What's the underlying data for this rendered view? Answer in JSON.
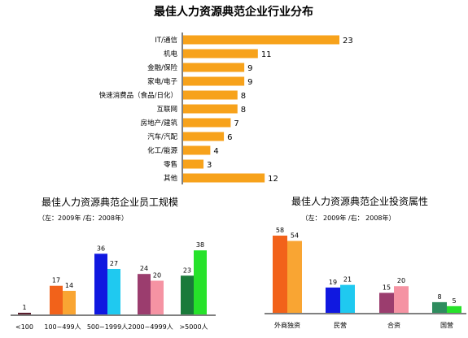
{
  "colors": {
    "industry_bar": "#F7A21B",
    "axis": "#000000",
    "size_pairs": [
      [
        "#F2621A",
        "#F9A533"
      ],
      [
        "#1018E0",
        "#1FC9F0"
      ],
      [
        "#9B3D6E",
        "#F593A3"
      ],
      [
        "#1A7A3A",
        "#26E22A"
      ]
    ],
    "size_small": [
      "#5A1F2E",
      "#5A1F2E"
    ],
    "own_pairs": [
      [
        "#F2621A",
        "#F9A533"
      ],
      [
        "#1018E0",
        "#1FC9F0"
      ],
      [
        "#9B3D6E",
        "#F593A3"
      ],
      [
        "#2E8C5E",
        "#26E22A"
      ]
    ]
  },
  "chart_data": [
    {
      "type": "bar",
      "orientation": "horizontal",
      "title": "最佳人力资源典范企业行业分布",
      "categories": [
        "IT/通信",
        "机电",
        "金融/保险",
        "家电/电子",
        "快速消费品（食品/日化）",
        "互联网",
        "房地产/建筑",
        "汽车/汽配",
        "化工/能源",
        "零售",
        "其他"
      ],
      "values": [
        23,
        11,
        9,
        9,
        8,
        8,
        7,
        6,
        4,
        3,
        12
      ],
      "xlim": [
        0,
        23
      ]
    },
    {
      "type": "bar",
      "title": "最佳人力资源典范企业员工规模",
      "subtitle": "（左：2009年 /右：2008年）",
      "categories": [
        "<100",
        "100~499人",
        "500~1999人",
        "2000~4999人",
        ">5000人"
      ],
      "series": [
        {
          "values": [
            1,
            17,
            36,
            24,
            23
          ]
        },
        {
          "values": [
            null,
            14,
            27,
            20,
            38
          ]
        }
      ],
      "ylim": [
        0,
        40
      ]
    },
    {
      "type": "bar",
      "title": "最佳人力资源典范企业投资属性",
      "subtitle": "（左： 2009年 /右： 2008年）",
      "categories": [
        "外商独资",
        "民营",
        "合资",
        "国营"
      ],
      "series": [
        {
          "values": [
            58,
            19,
            15,
            8
          ]
        },
        {
          "values": [
            54,
            21,
            20,
            5
          ]
        }
      ],
      "ylim": [
        0,
        62
      ]
    }
  ]
}
